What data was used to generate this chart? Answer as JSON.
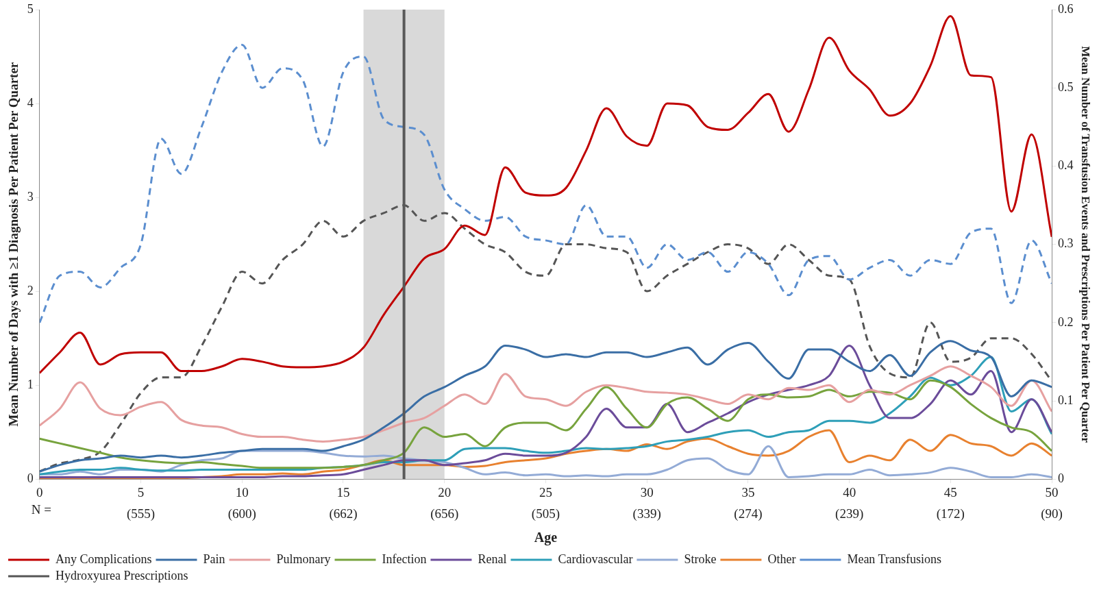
{
  "chart_data": {
    "type": "line",
    "xlabel": "Age",
    "ylabel": "Mean Number of Days with ≥1 Diagnosis Per Patient Per Quarter",
    "y2label": "Mean Number of Transfusion Events and Prescriptions Per Patient Per Quarter",
    "x": [
      0,
      1,
      2,
      3,
      4,
      5,
      6,
      7,
      8,
      9,
      10,
      11,
      12,
      13,
      14,
      15,
      16,
      17,
      18,
      19,
      20,
      21,
      22,
      23,
      24,
      25,
      26,
      27,
      28,
      29,
      30,
      31,
      32,
      33,
      34,
      35,
      36,
      37,
      38,
      39,
      40,
      41,
      42,
      43,
      44,
      45,
      46,
      47,
      48,
      49,
      50
    ],
    "xlim": [
      0,
      50
    ],
    "xticks": [
      0,
      5,
      10,
      15,
      20,
      25,
      30,
      35,
      40,
      45,
      50
    ],
    "ylim": [
      0,
      5
    ],
    "yticks": [
      0,
      1,
      2,
      3,
      4,
      5
    ],
    "y2lim": [
      0,
      0.6
    ],
    "y2ticks": [
      0,
      0.1,
      0.2,
      0.3,
      0.4,
      0.5,
      0.6
    ],
    "grid": false,
    "legend": "bottom",
    "marker": "none",
    "series": [
      {
        "name": "Any Complications",
        "color": "#c00000",
        "values": [
          1.13,
          1.35,
          1.56,
          1.22,
          1.33,
          1.35,
          1.35,
          1.15,
          1.15,
          1.2,
          1.28,
          1.25,
          1.2,
          1.19,
          1.2,
          1.25,
          1.4,
          1.75,
          2.05,
          2.35,
          2.45,
          2.7,
          2.6,
          3.32,
          3.05,
          3.02,
          3.1,
          3.5,
          3.95,
          3.65,
          3.55,
          4.0,
          3.98,
          3.75,
          3.72,
          3.9,
          4.1,
          3.7,
          4.15,
          4.7,
          4.35,
          4.15,
          3.87,
          4.0,
          4.4,
          4.93,
          4.3,
          4.28,
          2.85,
          3.67,
          2.58
        ]
      },
      {
        "name": "Pain",
        "color": "#3a6ea5",
        "values": [
          0.08,
          0.15,
          0.2,
          0.22,
          0.25,
          0.23,
          0.25,
          0.23,
          0.25,
          0.28,
          0.3,
          0.32,
          0.32,
          0.32,
          0.3,
          0.35,
          0.42,
          0.55,
          0.7,
          0.88,
          0.98,
          1.1,
          1.2,
          1.42,
          1.38,
          1.3,
          1.33,
          1.3,
          1.35,
          1.35,
          1.3,
          1.35,
          1.4,
          1.22,
          1.38,
          1.45,
          1.25,
          1.07,
          1.38,
          1.38,
          1.25,
          1.15,
          1.32,
          1.1,
          1.35,
          1.47,
          1.37,
          1.3,
          0.88,
          1.05,
          0.98
        ]
      },
      {
        "name": "Pulmonary",
        "color": "#e6a0a0",
        "values": [
          0.57,
          0.75,
          1.03,
          0.75,
          0.68,
          0.77,
          0.82,
          0.63,
          0.57,
          0.55,
          0.48,
          0.45,
          0.45,
          0.42,
          0.4,
          0.42,
          0.45,
          0.52,
          0.6,
          0.65,
          0.78,
          0.9,
          0.8,
          1.12,
          0.88,
          0.85,
          0.78,
          0.93,
          1.0,
          0.97,
          0.93,
          0.92,
          0.9,
          0.85,
          0.8,
          0.9,
          0.85,
          0.97,
          0.95,
          1.0,
          0.82,
          0.95,
          0.9,
          1.0,
          1.1,
          1.2,
          1.1,
          0.98,
          0.78,
          1.05,
          0.72
        ]
      },
      {
        "name": "Infection",
        "color": "#77a33d",
        "values": [
          0.43,
          0.38,
          0.33,
          0.28,
          0.23,
          0.2,
          0.18,
          0.17,
          0.18,
          0.16,
          0.14,
          0.12,
          0.12,
          0.12,
          0.12,
          0.13,
          0.15,
          0.2,
          0.28,
          0.55,
          0.45,
          0.48,
          0.35,
          0.55,
          0.6,
          0.6,
          0.52,
          0.75,
          0.98,
          0.75,
          0.55,
          0.8,
          0.87,
          0.75,
          0.62,
          0.85,
          0.9,
          0.87,
          0.88,
          0.95,
          0.88,
          0.93,
          0.92,
          0.85,
          1.05,
          0.98,
          0.8,
          0.65,
          0.55,
          0.5,
          0.3
        ]
      },
      {
        "name": "Renal",
        "color": "#6b4c9a",
        "values": [
          0.02,
          0.02,
          0.02,
          0.02,
          0.02,
          0.02,
          0.02,
          0.02,
          0.02,
          0.02,
          0.02,
          0.02,
          0.03,
          0.03,
          0.04,
          0.05,
          0.1,
          0.15,
          0.2,
          0.2,
          0.15,
          0.17,
          0.2,
          0.27,
          0.25,
          0.25,
          0.28,
          0.45,
          0.75,
          0.55,
          0.55,
          0.8,
          0.5,
          0.6,
          0.7,
          0.82,
          0.9,
          0.95,
          1.0,
          1.1,
          1.42,
          1.0,
          0.65,
          0.65,
          0.8,
          1.05,
          0.9,
          1.15,
          0.5,
          0.85,
          0.5
        ]
      },
      {
        "name": "Cardiovascular",
        "color": "#2e9fb8",
        "values": [
          0.05,
          0.08,
          0.1,
          0.1,
          0.12,
          0.1,
          0.09,
          0.09,
          0.1,
          0.1,
          0.1,
          0.1,
          0.1,
          0.1,
          0.12,
          0.13,
          0.15,
          0.18,
          0.18,
          0.2,
          0.2,
          0.32,
          0.33,
          0.33,
          0.3,
          0.28,
          0.3,
          0.33,
          0.32,
          0.33,
          0.35,
          0.4,
          0.42,
          0.45,
          0.5,
          0.52,
          0.45,
          0.5,
          0.52,
          0.62,
          0.62,
          0.6,
          0.7,
          0.88,
          1.08,
          1.0,
          1.1,
          1.3,
          0.72,
          0.85,
          0.48
        ]
      },
      {
        "name": "Stroke",
        "color": "#93abd6",
        "values": [
          0.05,
          0.05,
          0.08,
          0.05,
          0.1,
          0.1,
          0.08,
          0.15,
          0.2,
          0.22,
          0.3,
          0.3,
          0.3,
          0.3,
          0.28,
          0.25,
          0.24,
          0.25,
          0.22,
          0.2,
          0.18,
          0.12,
          0.05,
          0.07,
          0.04,
          0.05,
          0.03,
          0.04,
          0.03,
          0.05,
          0.05,
          0.1,
          0.2,
          0.22,
          0.1,
          0.05,
          0.35,
          0.02,
          0.03,
          0.05,
          0.05,
          0.1,
          0.04,
          0.05,
          0.07,
          0.12,
          0.08,
          0.02,
          0.02,
          0.05,
          0.02
        ]
      },
      {
        "name": "Other",
        "color": "#e8812f",
        "values": [
          0.01,
          0.01,
          0.01,
          0.01,
          0.01,
          0.01,
          0.01,
          0.01,
          0.02,
          0.03,
          0.05,
          0.05,
          0.06,
          0.05,
          0.08,
          0.1,
          0.15,
          0.2,
          0.15,
          0.15,
          0.15,
          0.13,
          0.14,
          0.18,
          0.2,
          0.22,
          0.27,
          0.3,
          0.32,
          0.3,
          0.37,
          0.32,
          0.4,
          0.43,
          0.35,
          0.27,
          0.25,
          0.3,
          0.45,
          0.52,
          0.18,
          0.25,
          0.2,
          0.42,
          0.3,
          0.47,
          0.38,
          0.35,
          0.25,
          0.38,
          0.25
        ]
      },
      {
        "name": "Mean Transfusions",
        "color": "#5b8ecf",
        "axis": "y2",
        "line_style": "dashed",
        "values": [
          0.2,
          0.26,
          0.265,
          0.245,
          0.27,
          0.3,
          0.435,
          0.39,
          0.45,
          0.52,
          0.555,
          0.5,
          0.525,
          0.51,
          0.425,
          0.52,
          0.54,
          0.46,
          0.45,
          0.44,
          0.37,
          0.345,
          0.33,
          0.335,
          0.31,
          0.305,
          0.3,
          0.35,
          0.31,
          0.31,
          0.27,
          0.3,
          0.28,
          0.29,
          0.265,
          0.29,
          0.275,
          0.235,
          0.28,
          0.285,
          0.255,
          0.27,
          0.28,
          0.26,
          0.28,
          0.275,
          0.315,
          0.32,
          0.225,
          0.305,
          0.25
        ]
      },
      {
        "name": "Hydroxyurea Prescriptions",
        "color": "#555555",
        "axis": "y2",
        "line_style": "dashed",
        "values": [
          0.01,
          0.02,
          0.025,
          0.035,
          0.07,
          0.11,
          0.13,
          0.13,
          0.17,
          0.22,
          0.265,
          0.25,
          0.28,
          0.3,
          0.33,
          0.31,
          0.33,
          0.34,
          0.35,
          0.33,
          0.34,
          0.32,
          0.3,
          0.29,
          0.265,
          0.26,
          0.3,
          0.3,
          0.295,
          0.29,
          0.24,
          0.26,
          0.275,
          0.29,
          0.3,
          0.295,
          0.275,
          0.3,
          0.28,
          0.26,
          0.255,
          0.17,
          0.135,
          0.13,
          0.2,
          0.15,
          0.155,
          0.18,
          0.18,
          0.16,
          0.125
        ]
      }
    ],
    "bands": [
      {
        "axis": "x",
        "from": 16,
        "to": 20,
        "color": "#d9d9d9"
      }
    ],
    "ref_lines": [
      {
        "axis": "x",
        "value": 18,
        "color": "#595959"
      }
    ],
    "annotations": [
      "N =",
      "(555)",
      "(600)",
      "(662)",
      "(656)",
      "(505)",
      "(339)",
      "(274)",
      "(239)",
      "(172)",
      "(90)"
    ]
  }
}
